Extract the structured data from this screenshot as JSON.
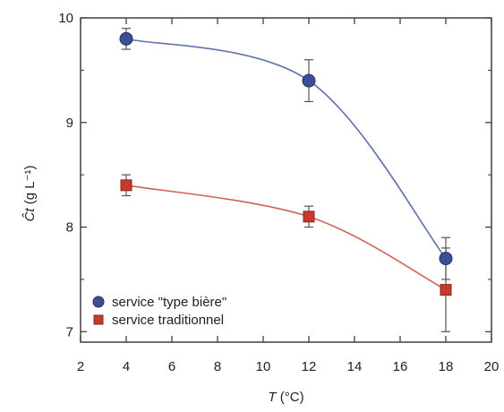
{
  "chart_data": {
    "type": "scatter",
    "xlabel": "T (°C)",
    "xlabel_symbol": "T",
    "xlabel_unit": "(°C)",
    "ylabel": "Ĉt (g L⁻¹)",
    "ylabel_symbol": "Ĉt",
    "ylabel_unit": "(g L⁻¹)",
    "xlim": [
      2,
      20
    ],
    "ylim": [
      6.9,
      10
    ],
    "xticks": [
      2,
      4,
      6,
      8,
      10,
      12,
      14,
      16,
      18,
      20
    ],
    "yticks": [
      7,
      8,
      9,
      10
    ],
    "grid": false,
    "legend_position": "bottom-left",
    "series": [
      {
        "name": "service \"type bière\"",
        "color": "#3a4f96",
        "marker": "circle",
        "points": [
          {
            "x": 4,
            "y": 9.8,
            "err": 0.1
          },
          {
            "x": 12,
            "y": 9.4,
            "err": 0.2
          },
          {
            "x": 18,
            "y": 7.7,
            "err": 0.2
          }
        ]
      },
      {
        "name": "service traditionnel",
        "color": "#c53a2c",
        "marker": "square",
        "points": [
          {
            "x": 4,
            "y": 8.4,
            "err": 0.1
          },
          {
            "x": 12,
            "y": 8.1,
            "err": 0.1
          },
          {
            "x": 18,
            "y": 7.4,
            "err": 0.4
          }
        ]
      }
    ]
  }
}
